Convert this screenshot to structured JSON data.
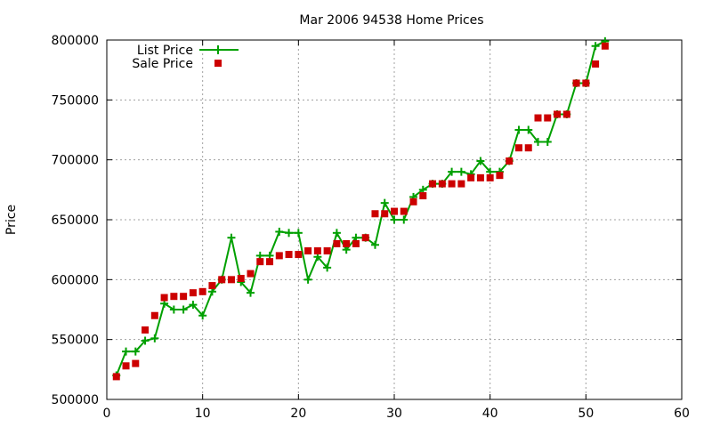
{
  "chart_data": {
    "type": "line",
    "title": "Mar 2006 94538 Home Prices",
    "xlabel": "",
    "ylabel": "Price",
    "xlim": [
      0,
      60
    ],
    "ylim": [
      500000,
      800000
    ],
    "x_ticks": [
      0,
      10,
      20,
      30,
      40,
      50,
      60
    ],
    "y_ticks": [
      500000,
      550000,
      600000,
      650000,
      700000,
      750000,
      800000
    ],
    "x_tick_labels": [
      "0",
      "10",
      "20",
      "30",
      "40",
      "50",
      "60"
    ],
    "y_tick_labels": [
      "500000",
      "550000",
      "600000",
      "650000",
      "700000",
      "750000",
      "800000"
    ],
    "grid": true,
    "legend_position": "top-left",
    "colors": {
      "list": "#00a000",
      "sale": "#cc0000",
      "grid": "#a0a0a0"
    },
    "series": [
      {
        "name": "List Price",
        "style": "line-with-plus-markers",
        "x": [
          1,
          2,
          3,
          4,
          5,
          6,
          7,
          8,
          9,
          10,
          11,
          12,
          13,
          14,
          15,
          16,
          17,
          18,
          19,
          20,
          21,
          22,
          23,
          24,
          25,
          26,
          27,
          28,
          29,
          30,
          31,
          32,
          33,
          34,
          35,
          36,
          37,
          38,
          39,
          40,
          41,
          42,
          43,
          44,
          45,
          46,
          47,
          48,
          49,
          50,
          51,
          52
        ],
        "values": [
          520000,
          540000,
          540000,
          549000,
          551000,
          580000,
          575000,
          575000,
          579000,
          570000,
          590000,
          600000,
          635000,
          598000,
          589000,
          620000,
          620000,
          640000,
          639000,
          639000,
          600000,
          619000,
          610000,
          639000,
          625000,
          635000,
          635000,
          629000,
          664000,
          650000,
          650000,
          669000,
          675000,
          680000,
          680000,
          690000,
          690000,
          688000,
          699000,
          690000,
          690000,
          699000,
          725000,
          725000,
          715000,
          715000,
          738000,
          738000,
          764000,
          764000,
          795000,
          799000
        ]
      },
      {
        "name": "Sale Price",
        "style": "square-markers",
        "x": [
          1,
          2,
          3,
          4,
          5,
          6,
          7,
          8,
          9,
          10,
          11,
          12,
          13,
          14,
          15,
          16,
          17,
          18,
          19,
          20,
          21,
          22,
          23,
          24,
          25,
          26,
          27,
          28,
          29,
          30,
          31,
          32,
          33,
          34,
          35,
          36,
          37,
          38,
          39,
          40,
          41,
          42,
          43,
          44,
          45,
          46,
          47,
          48,
          49,
          50,
          51,
          52
        ],
        "values": [
          519000,
          528000,
          530000,
          558000,
          570000,
          585000,
          586000,
          586000,
          589000,
          590000,
          595000,
          600000,
          600000,
          601000,
          605000,
          615000,
          615000,
          620000,
          621000,
          621000,
          624000,
          624000,
          624000,
          630000,
          630000,
          630000,
          635000,
          655000,
          655000,
          657000,
          657000,
          665000,
          670000,
          680000,
          680000,
          680000,
          680000,
          685000,
          685000,
          685000,
          687000,
          699000,
          710000,
          710000,
          735000,
          735000,
          738000,
          738000,
          764000,
          764000,
          780000,
          795000
        ]
      }
    ]
  }
}
